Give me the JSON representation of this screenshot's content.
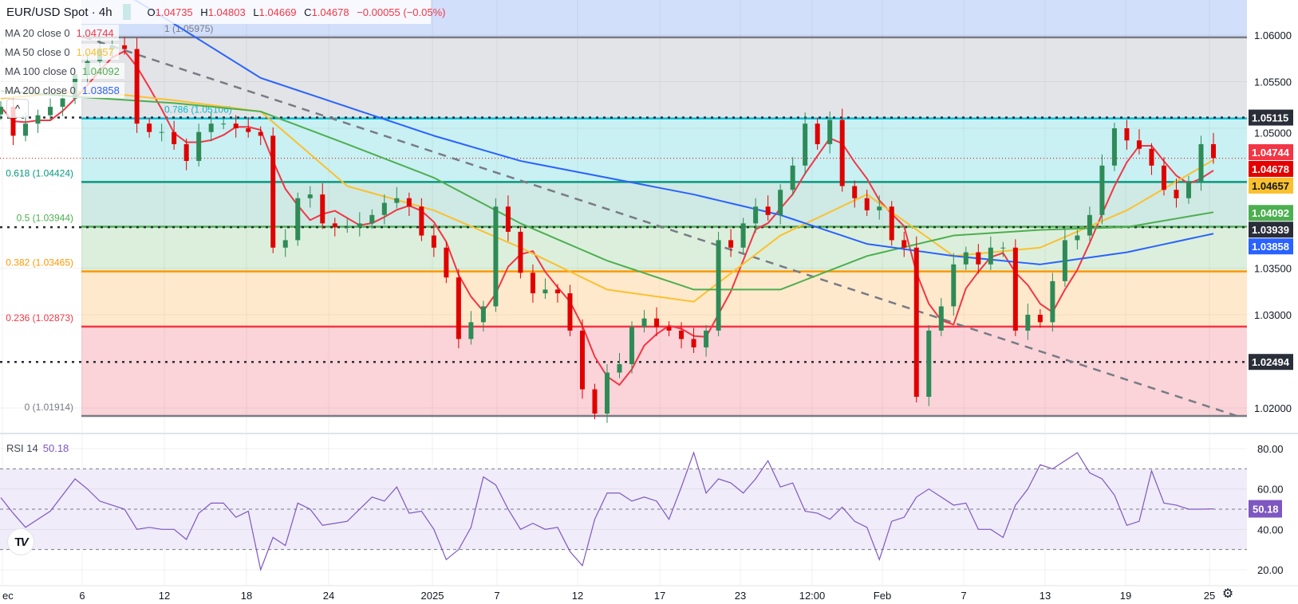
{
  "header": {
    "symbol": "EUR/USD Spot · 4h",
    "open_label": "O",
    "open": "1.04735",
    "high_label": "H",
    "high": "1.04803",
    "low_label": "L",
    "low": "1.04669",
    "close_label": "C",
    "close": "1.04678",
    "change": "−0.00055 (−0.05%)",
    "status_color": "#089981"
  },
  "indicators": [
    {
      "name": "MA 20 close 0",
      "value": "1.04744",
      "color": "#f23645"
    },
    {
      "name": "MA 50 close 0",
      "value": "1.04657",
      "color": "#fbc02d"
    },
    {
      "name": "MA 100 close 0",
      "value": "1.04092",
      "color": "#4caf50"
    },
    {
      "name": "MA 200 close 0",
      "value": "1.03858",
      "color": "#2962ff"
    }
  ],
  "collapse_icon": "chevron-up-icon",
  "rsi_legend": {
    "name": "RSI 14",
    "value": "50.18"
  },
  "chart_data": [
    {
      "type": "candlestick",
      "title": "EUR/USD Spot · 4h",
      "ylim": [
        1.0175,
        1.064
      ],
      "y_ticks": [
        "1.06000",
        "1.05500",
        "1.05000",
        "1.03500",
        "1.03000",
        "1.02000"
      ],
      "y_tick_values": [
        1.06,
        1.055,
        1.05,
        1.035,
        1.03,
        1.02
      ],
      "x_ticks": [
        "ec",
        "6",
        "12",
        "18",
        "24",
        "2025",
        "7",
        "12",
        "17",
        "23",
        "12:00",
        "Feb",
        "7",
        "13",
        "19",
        "25"
      ],
      "grid": true,
      "close": [
        1.0523,
        1.0492,
        1.0505,
        1.0514,
        1.0523,
        1.0532,
        1.0558,
        1.0572,
        1.0585,
        1.0589,
        1.0585,
        1.0505,
        1.0496,
        1.0496,
        1.0483,
        1.0465,
        1.0496,
        1.0505,
        1.0505,
        1.05,
        1.0496,
        1.0492,
        1.0372,
        1.038,
        1.0425,
        1.0429,
        1.0398,
        1.0394,
        1.0394,
        1.0398,
        1.0407,
        1.042,
        1.0425,
        1.0416,
        1.0385,
        1.0372,
        1.034,
        1.0274,
        1.0292,
        1.0309,
        1.0416,
        1.0389,
        1.0345,
        1.0323,
        1.0327,
        1.0323,
        1.0283,
        1.022,
        1.0194,
        1.0238,
        1.0247,
        1.0287,
        1.0296,
        1.0287,
        1.0283,
        1.0274,
        1.0265,
        1.0283,
        1.038,
        1.0372,
        1.0398,
        1.0416,
        1.0407,
        1.0434,
        1.046,
        1.0505,
        1.0483,
        1.0509,
        1.0438,
        1.0425,
        1.0412,
        1.0416,
        1.038,
        1.0372,
        1.0212,
        1.0283,
        1.0309,
        1.0354,
        1.0367,
        1.0354,
        1.0372,
        1.0372,
        1.0283,
        1.03,
        1.0292,
        1.0336,
        1.038,
        1.0385,
        1.0407,
        1.046,
        1.05,
        1.0487,
        1.0478,
        1.046,
        1.0434,
        1.0425,
        1.0443,
        1.0483,
        1.0468
      ],
      "first_open": 1.0515,
      "moving_averages": [
        {
          "name": "MA 20",
          "period": 20,
          "color": "#f23645"
        },
        {
          "name": "MA 50",
          "period": 50,
          "color": "#fbc02d",
          "values": [
            1.0532,
            1.054,
            1.053,
            1.0518,
            1.0438,
            1.0412,
            1.0372,
            1.0327,
            1.0314,
            1.0385,
            1.0429,
            1.0363,
            1.0372,
            1.0412,
            1.0466
          ]
        },
        {
          "name": "MA 100",
          "period": 100,
          "color": "#4caf50",
          "values": [
            1.054,
            1.0533,
            1.0527,
            1.0518,
            1.0483,
            1.0447,
            1.0398,
            1.0358,
            1.0327,
            1.0327,
            1.0363,
            1.0385,
            1.0391,
            1.0394,
            1.041
          ]
        },
        {
          "name": "MA 200",
          "period": 200,
          "color": "#2962ff",
          "values": [
            1.0718,
            1.0669,
            1.0612,
            1.0554,
            1.0523,
            1.0492,
            1.0465,
            1.0447,
            1.0429,
            1.0407,
            1.0376,
            1.0363,
            1.0354,
            1.0367,
            1.0387
          ]
        }
      ],
      "fibonacci": [
        {
          "ratio": "1",
          "price": 1.05975,
          "label": "1 (1.05975)",
          "color": "#787b86",
          "fill": "#e3e4e7"
        },
        {
          "ratio": "0.786",
          "price": 1.05106,
          "label": "0.786 (1.05106)",
          "color": "#00bcd4",
          "fill": "#c9f0f3"
        },
        {
          "ratio": "0.618",
          "price": 1.04424,
          "label": "0.618 (1.04424)",
          "color": "#089981",
          "fill": "#cfe9e4"
        },
        {
          "ratio": "0.5",
          "price": 1.03944,
          "label": "0.5 (1.03944)",
          "color": "#4caf50",
          "fill": "#dcefdc"
        },
        {
          "ratio": "0.382",
          "price": 1.03465,
          "label": "0.382 (1.03465)",
          "color": "#ff9800",
          "fill": "#ffe9cc"
        },
        {
          "ratio": "0.236",
          "price": 1.02873,
          "label": "0.236 (1.02873)",
          "color": "#f23645",
          "fill": "#fad4d8"
        },
        {
          "ratio": "0",
          "price": 1.01914,
          "label": "0 (1.01914)",
          "color": "#787b86",
          "fill": "#fad4d8"
        }
      ],
      "above_fib_fill": "#d2dffb",
      "horizontal_levels": [
        {
          "price": 1.05115,
          "label": "1.05115"
        },
        {
          "price": 1.03939,
          "label": "1.03939"
        },
        {
          "price": 1.02494,
          "label": "1.02494"
        }
      ],
      "trendline": {
        "from": {
          "bar": 6.7,
          "price": 1.0598
        },
        "to": {
          "bar": 100,
          "price": 1.0191
        },
        "style": "dashed",
        "color": "#787b86"
      },
      "price_badges": [
        {
          "label": "1.04744",
          "price": 1.04744,
          "bg": "#f23645",
          "fg": "#ffffff"
        },
        {
          "label": "1.04678",
          "price": 1.04678,
          "bg": "#e50000",
          "fg": "#ffffff"
        },
        {
          "label": "1.04657",
          "price": 1.04657,
          "bg": "#fbc02d",
          "fg": "#131722"
        },
        {
          "label": "1.04092",
          "price": 1.04092,
          "bg": "#4caf50",
          "fg": "#ffffff"
        },
        {
          "label": "1.03858",
          "price": 1.03858,
          "bg": "#2962ff",
          "fg": "#ffffff"
        }
      ],
      "level_badge_bg": "#2a2e39",
      "last_price": 1.04678,
      "up_color": "#2e8b57",
      "down_color": "#e00000"
    },
    {
      "type": "line",
      "title": "RSI 14",
      "ylim": [
        20,
        80
      ],
      "y_ticks": [
        "80.00",
        "60.00",
        "40.00",
        "20.00"
      ],
      "y_tick_values": [
        80,
        60,
        40,
        20
      ],
      "bands": [
        30,
        70
      ],
      "midline": 50,
      "color": "#7e57c2",
      "band_fill": "#f0ecf9",
      "last_label": "50.18",
      "values": [
        55.7,
        48,
        41,
        45,
        49,
        57,
        65,
        60,
        54,
        52,
        50,
        40,
        41,
        40,
        40,
        35,
        48,
        53,
        53,
        46,
        49,
        20,
        36,
        32,
        53,
        50,
        42,
        43,
        44,
        50,
        56,
        54,
        61,
        48,
        49,
        40,
        25,
        30,
        41,
        66,
        62,
        50,
        40,
        43,
        40,
        41,
        29,
        22,
        45,
        58,
        58,
        54,
        56,
        54,
        45,
        61,
        78,
        58,
        65,
        63,
        58,
        65,
        74,
        61,
        63,
        49,
        48,
        45,
        51,
        44,
        41,
        25,
        44,
        46,
        56,
        60,
        56,
        52,
        53,
        40,
        40,
        36,
        52,
        60,
        72,
        70,
        74,
        78,
        68,
        65,
        57,
        42,
        44,
        69,
        53,
        52,
        50,
        50,
        50.18
      ]
    }
  ],
  "settings_icon": "gear-icon",
  "logo": "TV"
}
